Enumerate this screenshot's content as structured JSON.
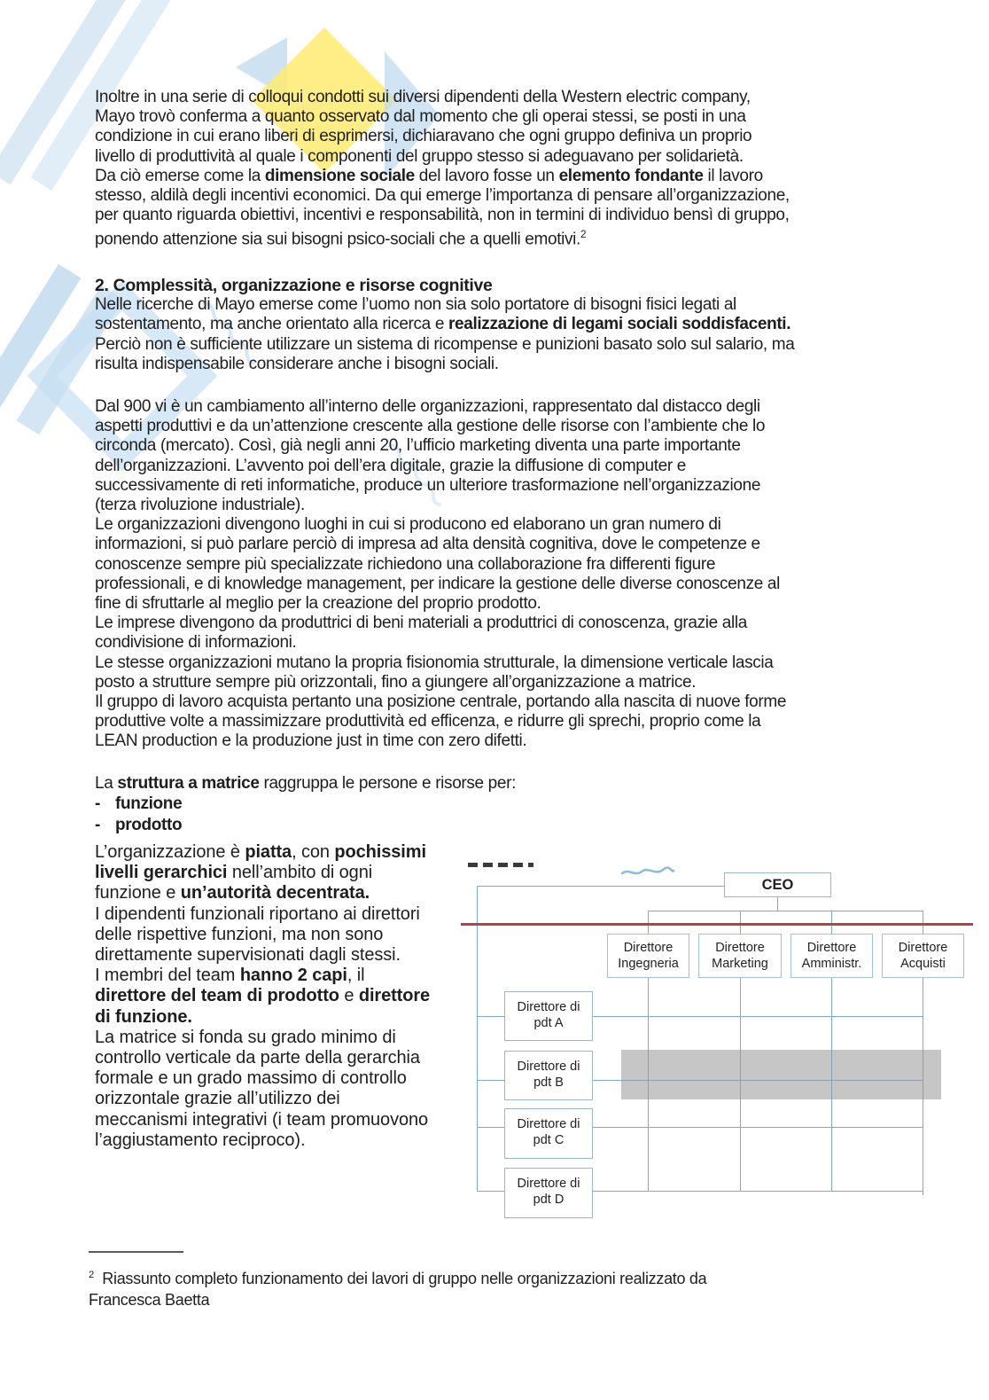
{
  "document": {
    "para1_lines": [
      "Inoltre in una serie di colloqui condotti sui diversi dipendenti della Western electric company,",
      "Mayo trovò conferma a quanto osservato dal momento che gli operai stessi, se posti in una",
      "condizione in cui erano liberi di esprimersi, dichiaravano che ogni gruppo definiva un proprio",
      "livello di produttività al quale i componenti del gruppo stesso si adeguavano per solidarietà.",
      [
        {
          "t": "Da ciò emerse come la "
        },
        {
          "t": "dimensione sociale",
          "b": true
        },
        {
          "t": " del lavoro fosse un "
        },
        {
          "t": "elemento fondante",
          "b": true
        },
        {
          "t": " il lavoro"
        }
      ],
      "stesso, aldilà degli incentivi economici. Da qui emerge l’importanza di pensare all’organizzazione,",
      "per quanto riguarda obiettivi, incentivi e responsabilità, non in termini di individuo bensì di gruppo,",
      [
        {
          "t": "ponendo attenzione sia sui bisogni psico-sociali che a quelli emotivi."
        },
        {
          "t": "2",
          "c": "sup"
        }
      ]
    ],
    "section_heading": "2. Complessità, organizzazione e risorse cognitive",
    "section_para": [
      "Nelle ricerche di Mayo emerse come l’uomo non sia solo portatore di bisogni fisici legati al",
      [
        {
          "t": "sostentamento, ma anche orientato alla ricerca e "
        },
        {
          "t": "realizzazione di legami sociali soddisfacenti.",
          "b": true
        }
      ],
      "Perciò non è sufficiente utilizzare un sistema di ricompense e punizioni basato solo sul salario, ma",
      "risulta indispensabile considerare anche i bisogni sociali."
    ],
    "body_lines": [
      "Dal 900 vi è un cambiamento all’interno delle organizzazioni, rappresentato dal distacco degli",
      "aspetti produttivi e da un’attenzione crescente alla gestione delle risorse con l’ambiente che lo",
      "circonda (mercato). Così, già negli anni 20, l’ufficio marketing diventa una parte importante",
      "dell’organizzazioni. L’avvento poi dell’era digitale, grazie la diffusione di computer e",
      "successivamente di reti informatiche, produce un ulteriore trasformazione nell’organizzazione",
      "(terza rivoluzione industriale).",
      "Le organizzazioni divengono luoghi in cui si producono ed elaborano un gran numero di",
      "informazioni, si può parlare perciò di impresa ad alta densità cognitiva, dove le competenze e",
      "conoscenze sempre più specializzate richiedono una collaborazione fra differenti figure",
      "professionali, e di knowledge management, per indicare la gestione delle diverse conoscenze al",
      "fine di sfruttarle al meglio per la creazione del proprio prodotto.",
      "Le imprese divengono da produttrici di beni materiali a produttrici di conoscenza, grazie alla",
      "condivisione di informazioni.",
      "Le stesse organizzazioni mutano la propria fisionomia strutturale, la dimensione verticale lascia",
      "posto a strutture sempre più orizzontali, fino a giungere all’organizzazione a matrice.",
      "Il gruppo di lavoro acquista pertanto una posizione centrale, portando alla nascita di nuove forme",
      "produttive volte a massimizzare produttività ed efficenza, e ridurre gli sprechi, proprio come la",
      "LEAN production e la produzione just in time con zero difetti."
    ],
    "matrix_lines": [
      [
        {
          "t": "La "
        },
        {
          "t": "struttura a matrice",
          "b": true
        },
        {
          "t": " raggruppa le persone e risorse per:"
        }
      ],
      [
        {
          "t": "-",
          "c": "dash"
        },
        {
          "t": "funzione",
          "b": true
        }
      ],
      [
        {
          "t": "-",
          "c": "dash"
        },
        {
          "t": "prodotto",
          "b": true
        }
      ]
    ],
    "left_col_lines": [
      [
        {
          "t": "L’organizzazione è "
        },
        {
          "t": "piatta",
          "b": true
        },
        {
          "t": ", con "
        },
        {
          "t": "pochissimi",
          "b": true
        }
      ],
      [
        {
          "t": "livelli gerarchici",
          "b": true
        },
        {
          "t": " nell’ambito di ogni"
        }
      ],
      [
        {
          "t": "funzione e "
        },
        {
          "t": "un’autorità decentrata.",
          "b": true
        }
      ],
      "I dipendenti funzionali riportano ai direttori",
      "delle rispettive funzioni, ma non sono",
      "direttamente supervisionati dagli stessi.",
      [
        {
          "t": "I membri del team "
        },
        {
          "t": "hanno 2 capi",
          "b": true
        },
        {
          "t": ", il"
        }
      ],
      [
        {
          "t": "direttore del team di prodotto",
          "b": true
        },
        {
          "t": " e "
        },
        {
          "t": "direttore",
          "b": true
        }
      ],
      [
        {
          "t": "di funzione.",
          "b": true
        }
      ],
      "La matrice si fonda su grado minimo di",
      "controllo verticale da parte della gerarchia",
      "formale e un grado massimo di controllo",
      "orizzontale grazie all’utilizzo dei",
      "meccanismi integrativi (i team promuovono",
      "l’aggiustamento reciproco)."
    ],
    "footnote_lines": [
      [
        {
          "t": "2",
          "c": "sup"
        },
        {
          "t": "  Riassunto completo funzionamento dei lavori di gruppo nelle organizzazioni realizzato da"
        }
      ],
      "Francesca Baetta"
    ]
  },
  "diagram": {
    "ceo": "CEO",
    "functions": [
      "Direttore\nIngegneria",
      "Direttore\nMarketing",
      "Direttore\nAmministr.",
      "Direttore\nAcquisti"
    ],
    "products": [
      "Direttore di\npdt A",
      "Direttore di\npdt B",
      "Direttore di\npdt C",
      "Direttore di\npdt D"
    ]
  },
  "colors": {
    "connector_blue": "#7cabcf",
    "divider_red": "#b34444",
    "highlight_band_grey": "#989898",
    "watermark_blue": "#c2dcf0",
    "watermark_yellow": "#ffeb70"
  }
}
